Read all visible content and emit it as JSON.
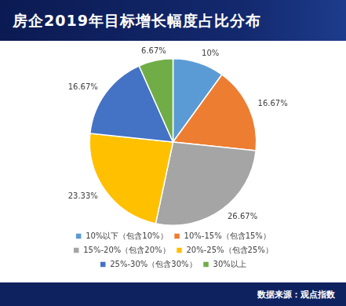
{
  "chart_data": {
    "type": "pie",
    "title": "房企2019年目标增长幅度占比分布",
    "source": "数据来源：观点指数",
    "categories": [
      "10%以下（包含10%）",
      "10%-15%（包含15%）",
      "15%-20%（包含20%）",
      "20%-25%（包含25%）",
      "25%-30%（包含30%）",
      "30%以上"
    ],
    "values": [
      10,
      16.67,
      26.67,
      23.33,
      16.67,
      6.67
    ],
    "value_labels": [
      "10%",
      "16.67%",
      "26.67%",
      "23.33%",
      "16.67%",
      "6.67%"
    ],
    "colors": [
      "#5b9bd5",
      "#ed7d31",
      "#a5a5a5",
      "#ffc000",
      "#4472c4",
      "#70ad47"
    ],
    "data_labels": true,
    "legend": "bottom"
  }
}
